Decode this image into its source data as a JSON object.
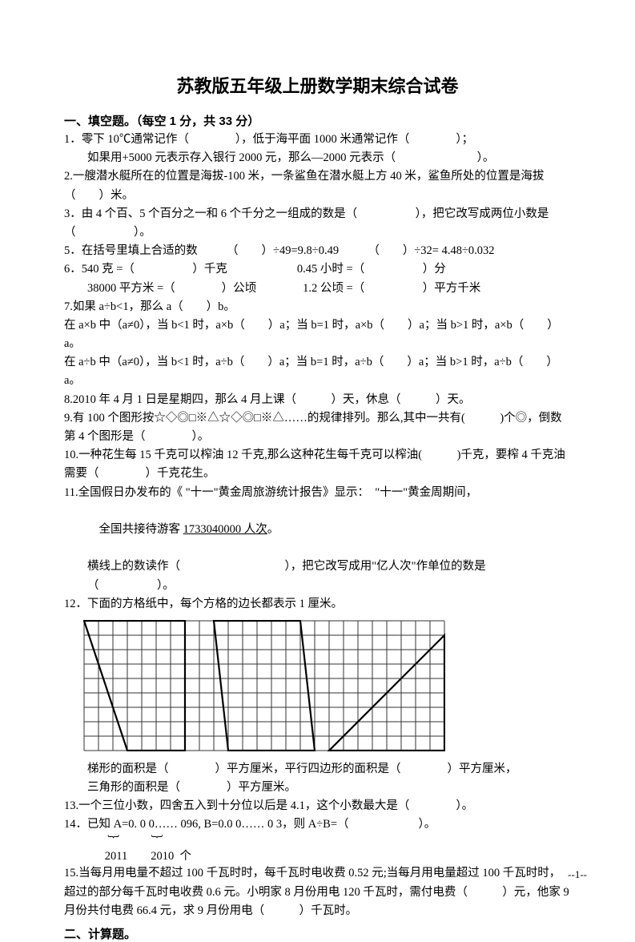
{
  "title": "苏教版五年级上册数学期末综合试卷",
  "section1": {
    "header": "一、填空题。（每空 1 分，共 33 分）",
    "q1a": "1．零下 10℃通常记作（　　　　），低于海平面 1000 米通常记作（　　　　）；",
    "q1b": "如果用+5000 元表示存入银行 2000 元，那么—2000 元表示（　　　　　　　）。",
    "q2": "2.一艘潜水艇所在的位置是海拔-100 米，一条鲨鱼在潜水艇上方 40 米，鲨鱼所处的位置是海拔（　　）米。",
    "q3": "3．由 4 个百、5 个百分之一和 6 个千分之一组成的数是（　　　　　），把它改写成两位小数是（　　　　　）。",
    "q5": "5．在括号里填上合适的数　　　（　　）÷49=9.8÷0.49　　　（　　）÷32= 4.48÷0.032",
    "q6a": "6．540 克 =（　　　　　）千克　　　　　　0.45 小时 =（　　　　　）分",
    "q6b": "38000 平方米 =（　　　　）公顷　　　　1.2 公顷 =（　　　　　）平方千米",
    "q7a": "7.如果 a÷b<1，那么 a（　　）b。",
    "q7b": "在 a×b 中（a≠0），当 b<1 时，a×b（　　）a；当 b=1 时，a×b（　　）a；当 b>1 时，a×b（　　）a。",
    "q7c": "在 a÷b 中（a≠0），当 b<1 时，a÷b（　　）a；当 b=1 时，a÷b（　　）a；当 b>1 时，a÷b（　　）a。",
    "q8": "8.2010 年 4 月 1 日是星期四，那么 4 月上课（　　　）天，休息（　　　）天。",
    "q9": "9.有 100 个图形按☆◇◎□※△☆◇◎□※△……的规律排列。那么,其中一共有(　　　)个◎，倒数第 4 个图形是（　　　　）。",
    "q10": "10.一种花生每 15 千克可以榨油 12 千克,那么这种花生每千克可以榨油(　　　)千克，要榨 4 千克油需要（　　　　）千克花生。",
    "q11a": "11.全国假日办发布的《 \"十一\"黄金周旅游统计报告》显示：　\"十一\"黄金周期间，",
    "q11b_pre": "全国共接待游客 ",
    "q11b_under": "1733040000 人次",
    "q11b_post": "。",
    "q11c": "横线上的数读作（　　　　　　　　　），把它改写成用\"亿人次\"作单位的数是（　　　　　）。",
    "q12": "12．下面的方格纸中，每个方格的边长都表示 1 厘米。",
    "q12b": "梯形的面积是（　　　　）平方厘米，平行四边形的面积是（　　　　）平方厘米，",
    "q12c": "三角形的面积是（　　　　）平方厘米。",
    "q13": "13.一个三位小数，四舍五入到十分位以后是 4.1，这个小数最大是（　　　　）。",
    "q14a": "14．已知 A=0. 0 0…… 096, B=0.0 0…… 0 3，则 A÷B=（　　　　　　）。",
    "q14b": "               ︸           ︸",
    "q14c": "              2011        2010  个",
    "q15": "15.当每月用电量不超过 100 千瓦时时，每千瓦时电收费 0.52 元;当每月用电量超过 100 千瓦时时，超过的部分每千瓦时电收费 0.6 元。小明家 8 月份用电 120 千瓦时，需付电费（　　　）元，他家 9 月份共付电费 66.4 元，求 9 月份用电（　　　）千瓦时。"
  },
  "section2": {
    "header": "二、计算题。"
  },
  "pageNumber": "--1--",
  "figure": {
    "cols": 25,
    "rows": 9,
    "cell": 18,
    "stroke": "#000000",
    "gridStroke": "#333333",
    "gridWidth": 1,
    "shapeWidth": 2.2,
    "trapezoid": [
      [
        0,
        0
      ],
      [
        7,
        0
      ],
      [
        7,
        9
      ],
      [
        3,
        9
      ]
    ],
    "parallelogram": [
      [
        9,
        0
      ],
      [
        15,
        0
      ],
      [
        16,
        9
      ],
      [
        10,
        9
      ]
    ],
    "triangle": [
      [
        17,
        9
      ],
      [
        25,
        9
      ],
      [
        25,
        1
      ]
    ]
  }
}
